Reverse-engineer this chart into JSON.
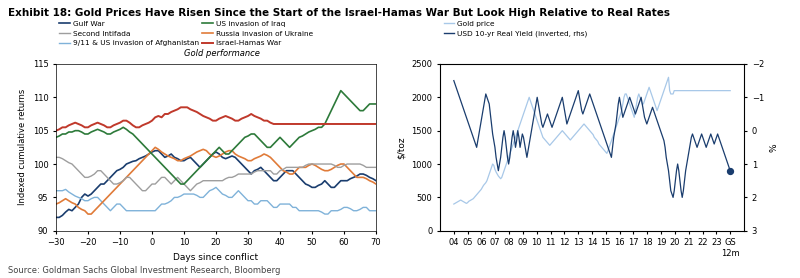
{
  "title": "Exhibit 18: Gold Prices Have Risen Since the Start of the Israel-Hamas War But Look High Relative to Real Rates",
  "source": "Source: Goldman Sachs Global Investment Research, Bloomberg",
  "left_panel": {
    "ylabel": "Indexed cumulative returns",
    "xlabel": "Days since conflict",
    "subtitle": "Gold performance",
    "xlim": [
      -30,
      70
    ],
    "ylim": [
      90,
      115
    ],
    "yticks": [
      90,
      95,
      100,
      105,
      110,
      115
    ],
    "xticks": [
      -30,
      -20,
      -10,
      0,
      10,
      20,
      30,
      40,
      50,
      60,
      70
    ],
    "series": [
      {
        "label": "Gulf War",
        "color": "#1a3d6e",
        "lw": 1.2
      },
      {
        "label": "9/11 & US invasion of Afghanistan",
        "color": "#7fb2d9",
        "lw": 1.0
      },
      {
        "label": "Russia invasion of Ukraine",
        "color": "#e07b39",
        "lw": 1.2
      },
      {
        "label": "Second Intifada",
        "color": "#9e9e9e",
        "lw": 1.0
      },
      {
        "label": "US invasion of Iraq",
        "color": "#2d7a3a",
        "lw": 1.2
      },
      {
        "label": "Israel-Hamas War",
        "color": "#c0392b",
        "lw": 1.4
      }
    ]
  },
  "right_panel": {
    "ylabel_left": "$/toz",
    "ylabel_right": "%",
    "xlim_labels": [
      "04",
      "05",
      "06",
      "07",
      "08",
      "09",
      "10",
      "11",
      "12",
      "13",
      "14",
      "15",
      "16",
      "17",
      "18",
      "19",
      "20",
      "21",
      "22",
      "23",
      "GS\n12m"
    ],
    "ylim_left": [
      0,
      2500
    ],
    "ylim_right": [
      -2,
      3
    ],
    "yticks_left": [
      0,
      500,
      1000,
      1500,
      2000,
      2500
    ],
    "yticks_right": [
      -2,
      -1,
      0,
      1,
      2,
      3
    ],
    "gold_color": "#a8c8e8",
    "yield_color": "#1a3d6e",
    "dot_color": "#1a3d6e",
    "legend": [
      {
        "label": "Gold price",
        "color": "#a8c8e8",
        "lw": 1.0
      },
      {
        "label": "USD 10-yr Real Yield (inverted, rhs)",
        "color": "#1a3d6e",
        "lw": 1.0
      }
    ]
  }
}
